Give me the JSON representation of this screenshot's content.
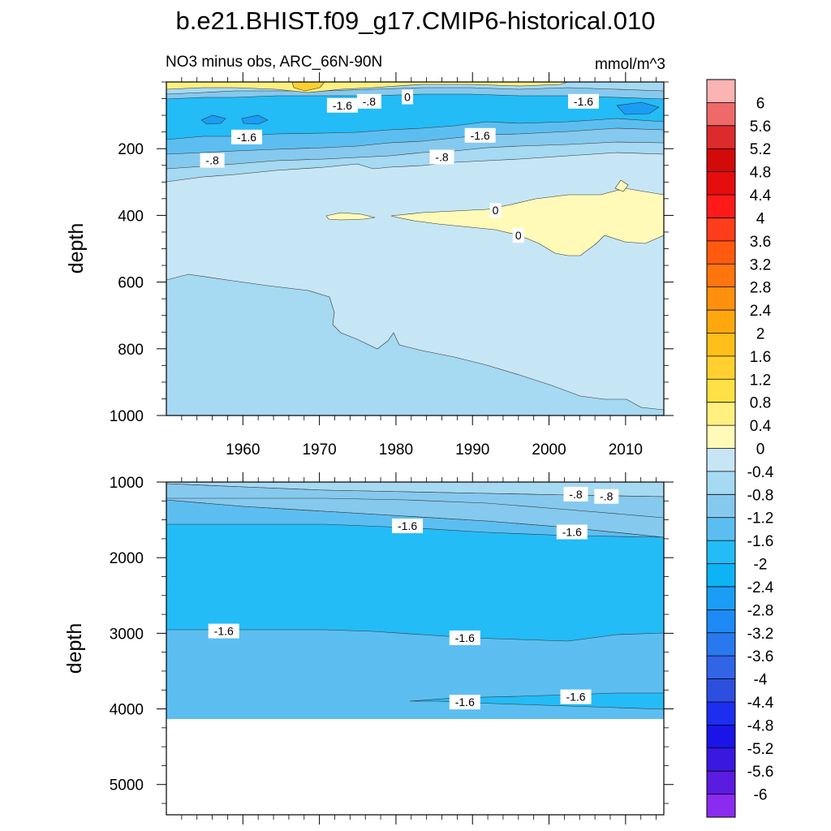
{
  "title": "b.e21.BHIST.f09_g17.CMIP6-historical.010",
  "subtitle_left": "NO3 minus obs, ARC_66N-90N",
  "subtitle_right": "mmol/m^3",
  "chart_data": [
    {
      "type": "contour",
      "panel": "upper",
      "xlabel": "",
      "ylabel": "depth",
      "xlim": [
        1950,
        2015
      ],
      "ylim": [
        1000,
        0
      ],
      "x_ticks": [
        1960,
        1970,
        1980,
        1990,
        2000,
        2010
      ],
      "x_tick_labels": [
        "1960",
        "1970",
        "1980",
        "1990",
        "2000",
        "2010"
      ],
      "y_ticks": [
        200,
        400,
        600,
        800,
        1000
      ],
      "y_tick_labels": [
        "200",
        "400",
        "600",
        "800",
        "1000"
      ],
      "contour_labels": [
        {
          "text": "-1.6",
          "x": 1973,
          "y": 70
        },
        {
          "text": "-.8",
          "x": 1976.5,
          "y": 58
        },
        {
          "text": "0",
          "x": 1981.5,
          "y": 45
        },
        {
          "text": "-1.6",
          "x": 2004.5,
          "y": 58
        },
        {
          "text": "-1.6",
          "x": 1960.5,
          "y": 165
        },
        {
          "text": "-1.6",
          "x": 1991,
          "y": 160
        },
        {
          "text": "-.8",
          "x": 1956,
          "y": 235
        },
        {
          "text": "-.8",
          "x": 1986,
          "y": 225
        },
        {
          "text": "0",
          "x": 1993,
          "y": 385
        },
        {
          "text": "0",
          "x": 1996,
          "y": 460
        }
      ]
    },
    {
      "type": "contour",
      "panel": "lower",
      "xlabel": "",
      "ylabel": "depth",
      "xlim": [
        1950,
        2015
      ],
      "ylim": [
        5400,
        1000
      ],
      "y_ticks": [
        1000,
        2000,
        3000,
        4000,
        5000
      ],
      "y_tick_labels": [
        "1000",
        "2000",
        "3000",
        "4000",
        "5000"
      ],
      "ocean_floor_depth": 4120,
      "contour_labels": [
        {
          "text": "-.8",
          "x": 2003.5,
          "y": 1160
        },
        {
          "text": "-.8",
          "x": 2007.5,
          "y": 1190
        },
        {
          "text": "-1.6",
          "x": 1981.5,
          "y": 1580
        },
        {
          "text": "-1.6",
          "x": 2003,
          "y": 1660
        },
        {
          "text": "-1.6",
          "x": 1957.5,
          "y": 2970
        },
        {
          "text": "-1.6",
          "x": 1989,
          "y": 3060
        },
        {
          "text": "-1.6",
          "x": 1989,
          "y": 3910
        },
        {
          "text": "-1.6",
          "x": 2003.5,
          "y": 3840
        }
      ]
    }
  ],
  "colorbar": {
    "levels": [
      "6",
      "5.6",
      "5.2",
      "4.8",
      "4.4",
      "4",
      "3.6",
      "3.2",
      "2.8",
      "2.4",
      "2",
      "1.6",
      "1.2",
      "0.8",
      "0.4",
      "0",
      "-0.4",
      "-0.8",
      "-1.2",
      "-1.6",
      "-2",
      "-2.4",
      "-2.8",
      "-3.2",
      "-3.6",
      "-4",
      "-4.4",
      "-4.8",
      "-5.2",
      "-5.6",
      "-6"
    ],
    "colors": [
      "#fbb3b3",
      "#ee6969",
      "#dd2b2b",
      "#d20a0a",
      "#e50d0d",
      "#ff1a1a",
      "#ff3d1a",
      "#ff5a0d",
      "#ff750d",
      "#ff900d",
      "#ffa80d",
      "#ffbe1a",
      "#ffd030",
      "#ffe145",
      "#fff080",
      "#fffab8",
      "#c7e6f5",
      "#a6d9f2",
      "#86c9ee",
      "#5cbef0",
      "#23bcf7",
      "#0db3f5",
      "#1a9df5",
      "#1e8af5",
      "#2a78ee",
      "#3264e8",
      "#2c4fe0",
      "#1d2ef0",
      "#1a14e6",
      "#3a18e0",
      "#5a1ce0",
      "#8b2bf0"
    ]
  }
}
